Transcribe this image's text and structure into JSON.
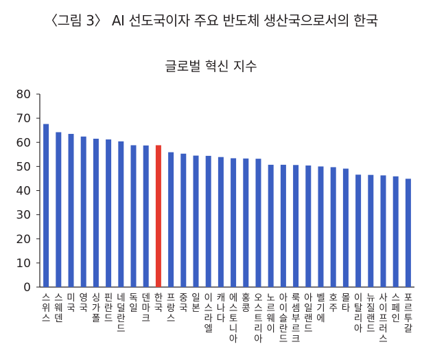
{
  "figure_title": "〈그림 3〉 AI 선도국이자 주요 반도체 생산국으로서의 한국",
  "colors": {
    "bar": "#3b5fc2",
    "highlight": "#e53a2e",
    "axis": "#231f20"
  },
  "chart_data": {
    "type": "bar",
    "title": "글로벌 혁신 지수",
    "xlabel": "",
    "ylabel": "",
    "ylim": [
      0,
      80
    ],
    "yticks": [
      0,
      10,
      20,
      30,
      40,
      50,
      60,
      70,
      80
    ],
    "grid": false,
    "highlight_category": "한국",
    "categories": [
      "스위스",
      "스웨덴",
      "미국",
      "영국",
      "싱가폴",
      "핀란드",
      "네덜란드",
      "독일",
      "덴마크",
      "한국",
      "프랑스",
      "중국",
      "일본",
      "이스라엘",
      "캐나다",
      "에스토니아",
      "홍콩",
      "오스트리아",
      "노르웨이",
      "아이슬란드",
      "룩셈부르크",
      "아일랜드",
      "벨기에",
      "호주",
      "몰타",
      "이탈리아",
      "뉴질랜드",
      "사이프러스",
      "스페인",
      "포르투갈"
    ],
    "values": [
      67.6,
      64.2,
      63.5,
      62.4,
      61.5,
      61.2,
      60.4,
      58.8,
      58.7,
      58.8,
      55.9,
      55.3,
      54.5,
      54.4,
      53.9,
      53.4,
      53.3,
      53.2,
      50.7,
      50.7,
      50.6,
      50.4,
      50.0,
      49.7,
      49.1,
      46.6,
      46.5,
      46.3,
      45.9,
      44.9
    ]
  }
}
